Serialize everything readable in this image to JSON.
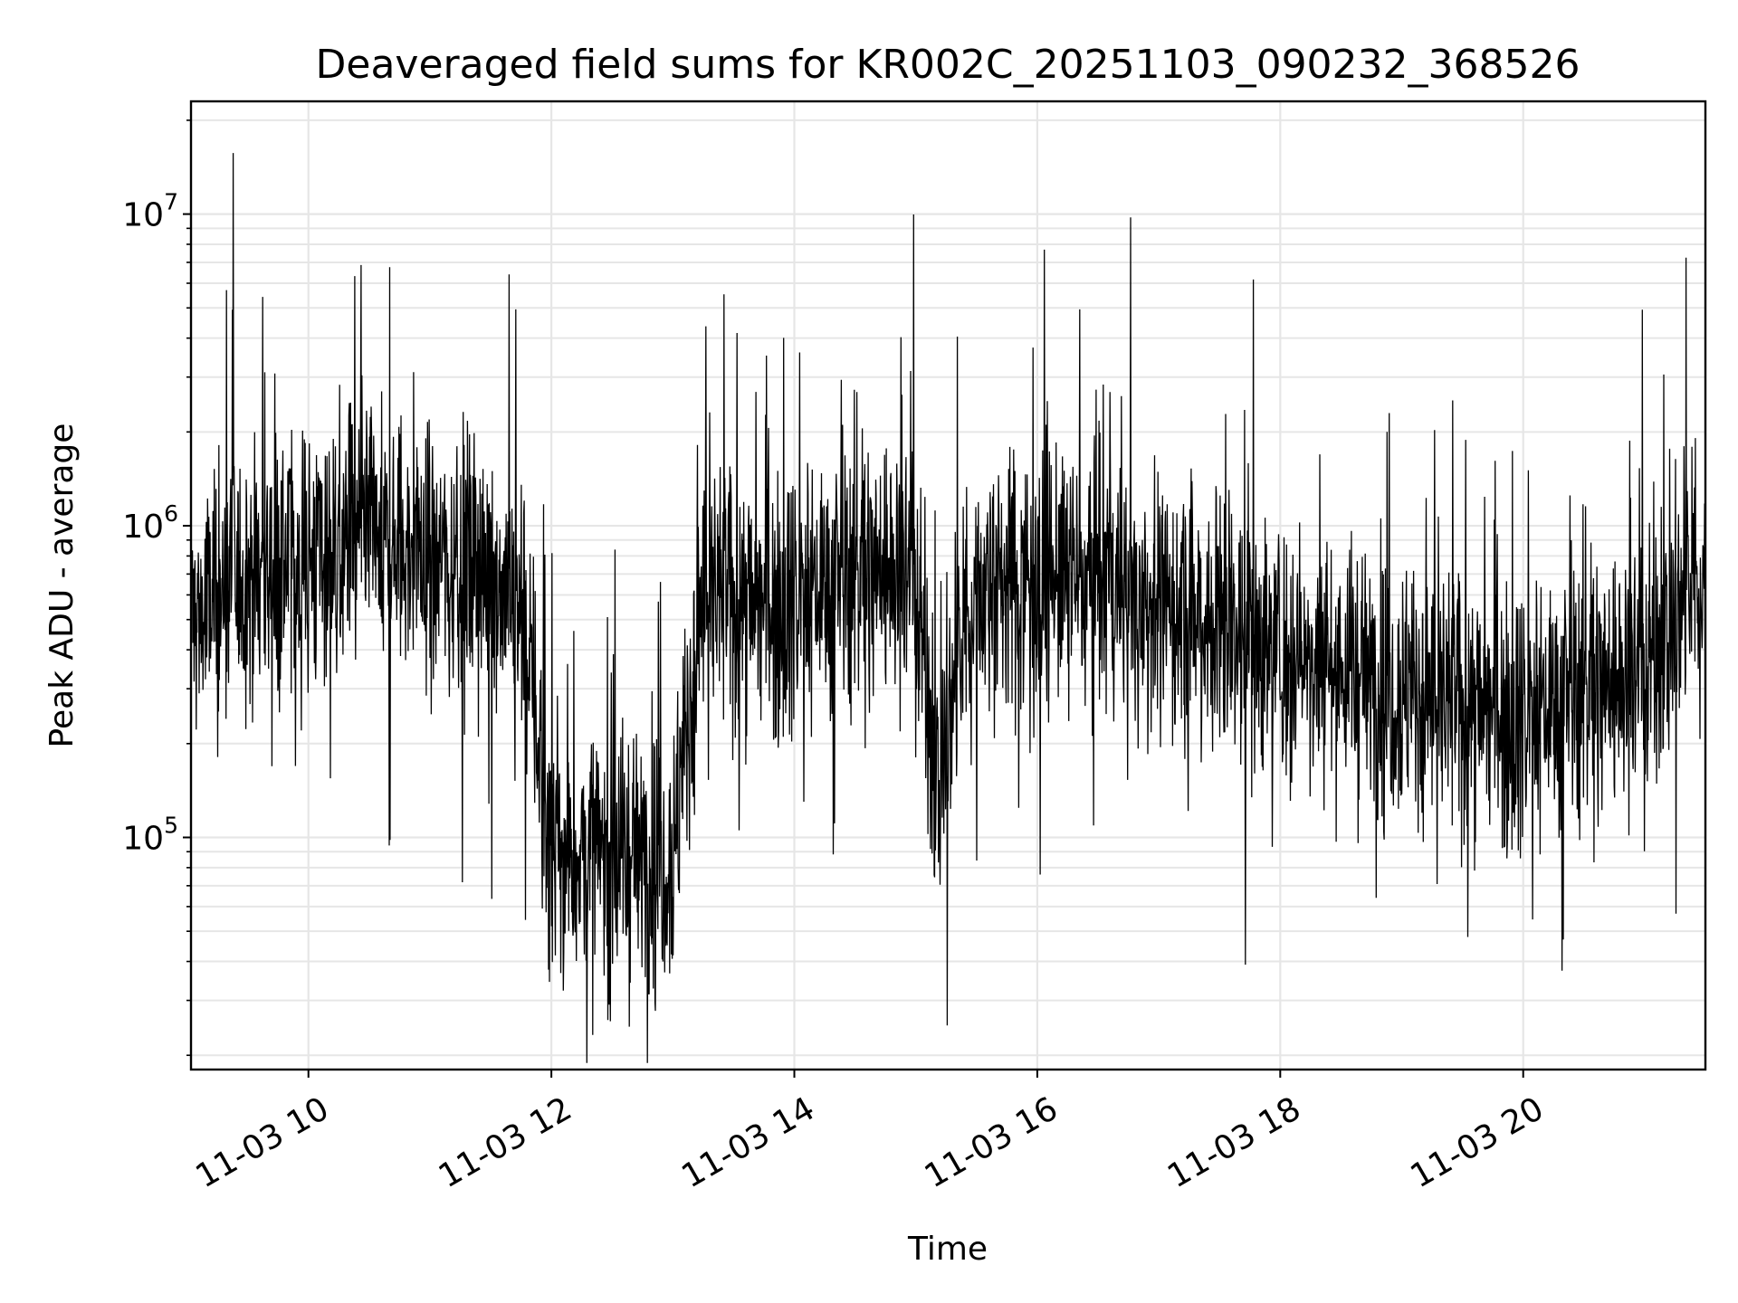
{
  "chart_data": {
    "type": "line",
    "title": "Deaveraged field sums for KR002C_20251103_090232_368526",
    "xlabel": "Time",
    "ylabel": "Peak ADU - average",
    "yscale": "log",
    "grid": true,
    "x_tick_labels": [
      "11-03 10",
      "11-03 12",
      "11-03 14",
      "11-03 16",
      "11-03 18",
      "11-03 20"
    ],
    "y_tick_labels": [
      {
        "base": "10",
        "exp": "5"
      },
      {
        "base": "10",
        "exp": "6"
      },
      {
        "base": "10",
        "exp": "7"
      }
    ],
    "xlim": [
      "2025-11-03 09:02",
      "2025-11-03 21:30"
    ],
    "ylim": [
      18000,
      23000000
    ],
    "line_color": "#000000",
    "series": [
      {
        "x": [
          "2025-11-03 09:05",
          "2025-11-03 09:30",
          "2025-11-03 10:00",
          "2025-11-03 10:30",
          "2025-11-03 11:00",
          "2025-11-03 11:30",
          "2025-11-03 11:45",
          "2025-11-03 12:00",
          "2025-11-03 12:30",
          "2025-11-03 13:00",
          "2025-11-03 13:15",
          "2025-11-03 13:45",
          "2025-11-03 14:15",
          "2025-11-03 14:45",
          "2025-11-03 15:00",
          "2025-11-03 15:10",
          "2025-11-03 15:30",
          "2025-11-03 16:00",
          "2025-11-03 16:30",
          "2025-11-03 17:00",
          "2025-11-03 17:30",
          "2025-11-03 18:00",
          "2025-11-03 18:30",
          "2025-11-03 19:00",
          "2025-11-03 19:30",
          "2025-11-03 20:00",
          "2025-11-03 20:30",
          "2025-11-03 21:00",
          "2025-11-03 21:25"
        ],
        "y": [
          500000,
          700000,
          800000,
          900000,
          800000,
          700000,
          600000,
          90000,
          85000,
          90000,
          600000,
          550000,
          650000,
          750000,
          700000,
          150000,
          650000,
          700000,
          650000,
          550000,
          500000,
          400000,
          350000,
          300000,
          260000,
          250000,
          300000,
          350000,
          650000
        ]
      }
    ]
  }
}
